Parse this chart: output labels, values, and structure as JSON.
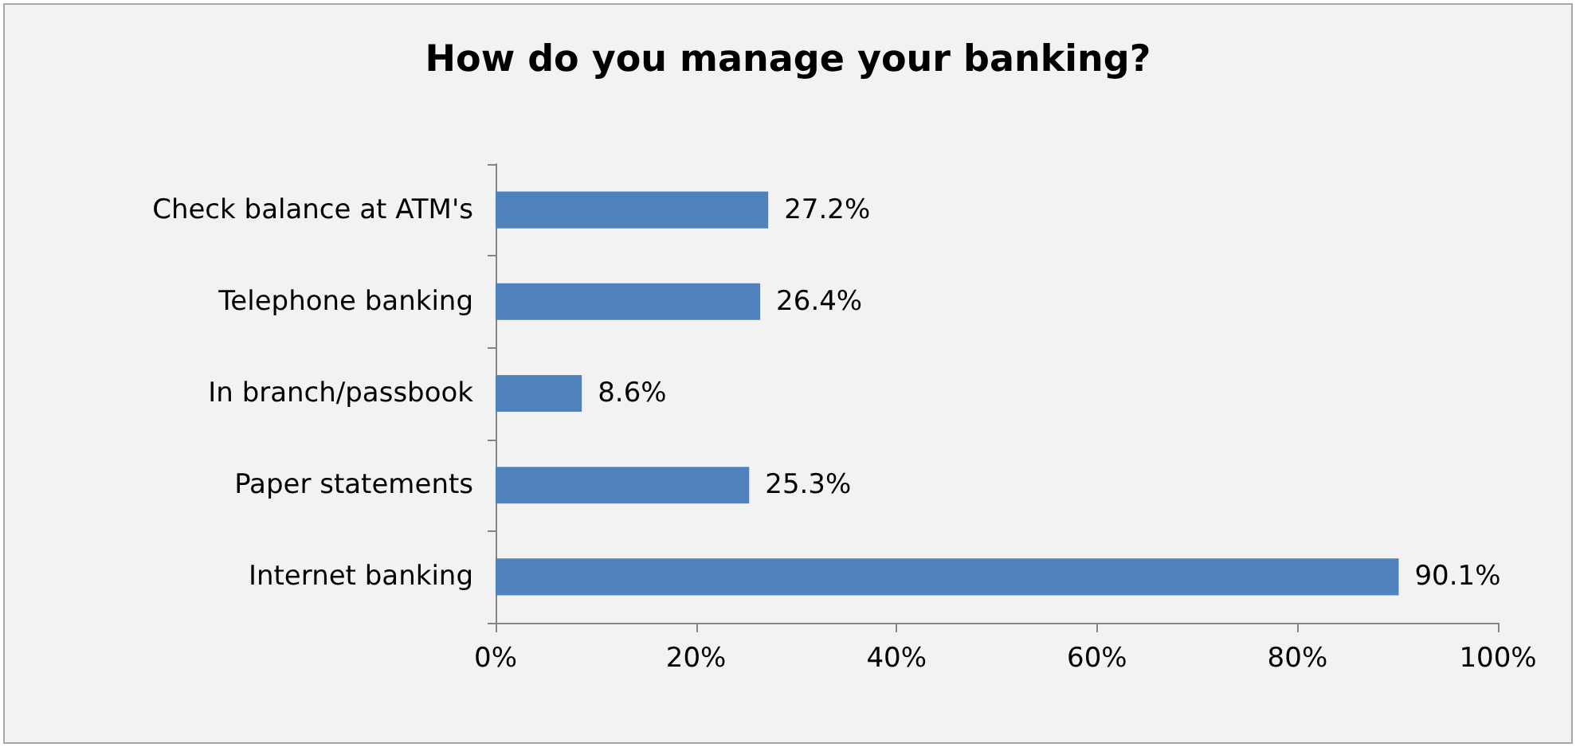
{
  "chart_data": {
    "type": "bar",
    "orientation": "horizontal",
    "title": "How do you manage your banking?",
    "categories": [
      "Check balance at ATM's",
      "Telephone banking",
      "In branch/passbook",
      "Paper statements",
      "Internet banking"
    ],
    "values": [
      27.2,
      26.4,
      8.6,
      25.3,
      90.1
    ],
    "value_labels": [
      "27.2%",
      "26.4%",
      "8.6%",
      "25.3%",
      "90.1%"
    ],
    "color": "#4f81bd",
    "xlim": [
      0,
      100
    ],
    "xticks": [
      {
        "value": 0,
        "label": "0%"
      },
      {
        "value": 20,
        "label": "20%"
      },
      {
        "value": 40,
        "label": "40%"
      },
      {
        "value": 60,
        "label": "60%"
      },
      {
        "value": 80,
        "label": "80%"
      },
      {
        "value": 100,
        "label": "100%"
      }
    ],
    "grid": false
  }
}
